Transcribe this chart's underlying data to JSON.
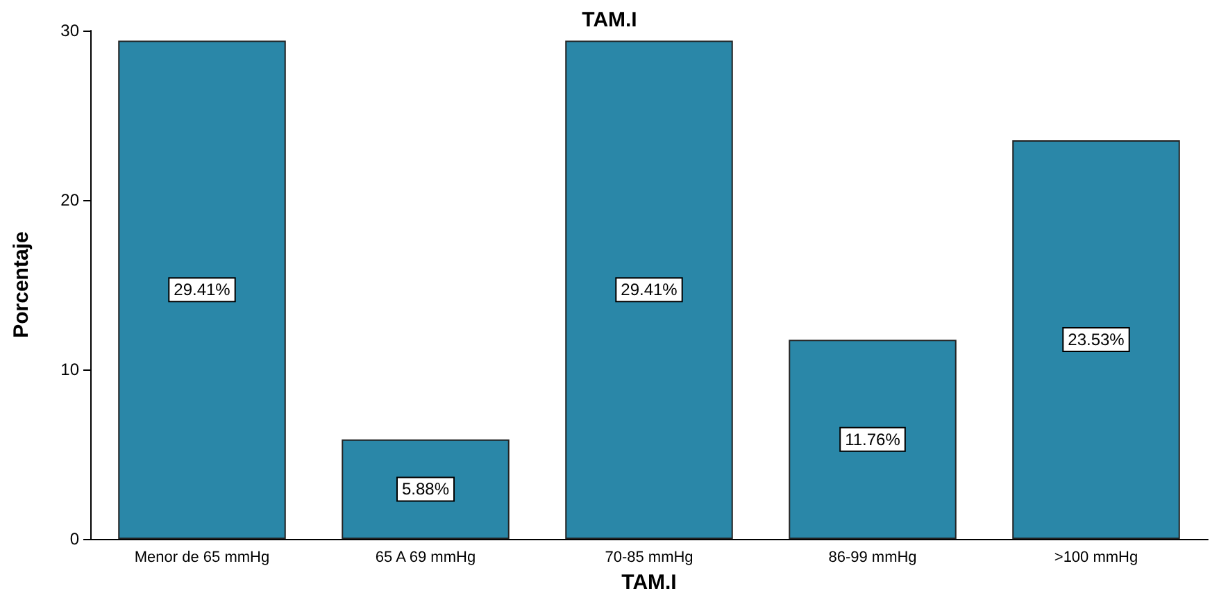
{
  "chart_data": {
    "type": "bar",
    "title": "TAM.I",
    "xlabel": "TAM.I",
    "ylabel": "Porcentaje",
    "categories": [
      "Menor de 65 mmHg",
      "65 A 69 mmHg",
      "70-85 mmHg",
      "86-99 mmHg",
      ">100 mmHg"
    ],
    "values": [
      29.41,
      5.88,
      29.41,
      11.76,
      23.53
    ],
    "value_labels": [
      "29.41%",
      "5.88%",
      "29.41%",
      "11.76%",
      "23.53%"
    ],
    "color": "#2a87a8",
    "ylim": [
      0,
      30
    ],
    "yticks": [
      0,
      10,
      20,
      30
    ],
    "grid": false
  }
}
